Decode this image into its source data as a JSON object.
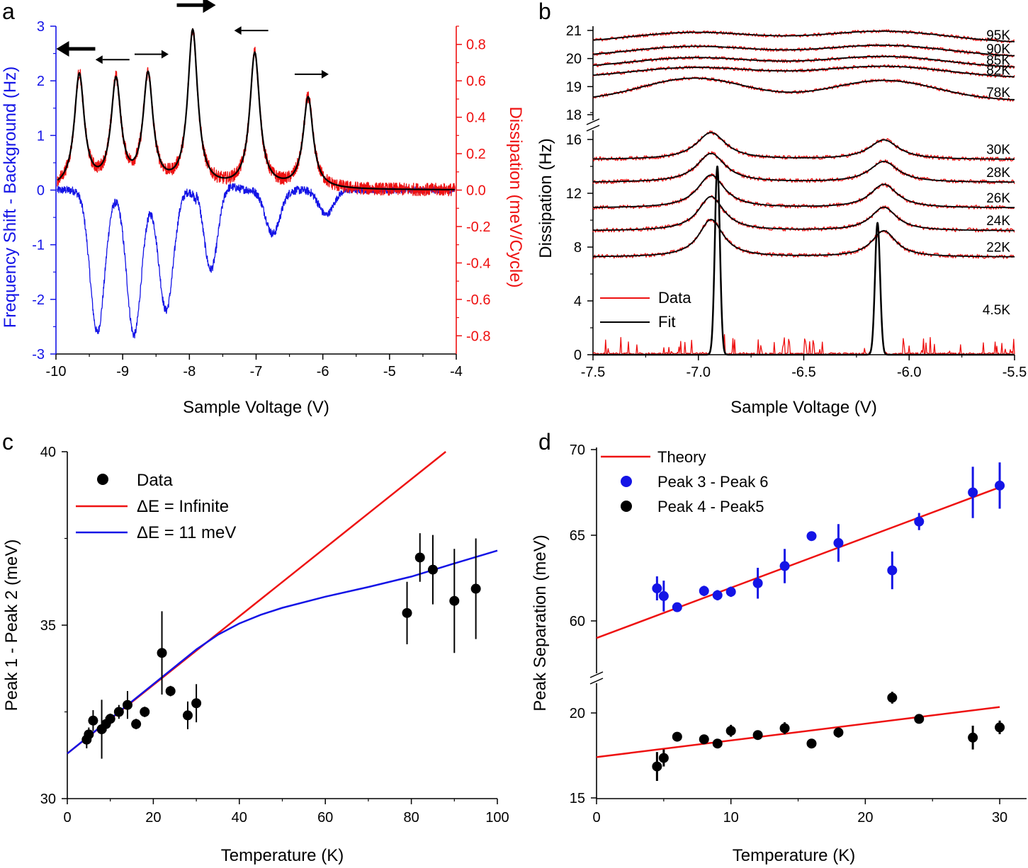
{
  "panel_labels": [
    "a",
    "b",
    "c",
    "d"
  ],
  "colors": {
    "blue": "#1414e6",
    "red": "#ee1111",
    "black": "#000000"
  },
  "chart_data": [
    {
      "type": "line",
      "panel": "a",
      "xlabel": "Sample Voltage (V)",
      "ylabel_left": "Frequency Shift - Background (Hz)",
      "ylabel_right": "Dissipation (meV/Cycle)",
      "xlim": [
        -10,
        -4
      ],
      "ylim_left": [
        -3,
        3
      ],
      "ylim_right": [
        -0.9,
        0.9
      ],
      "xticks": [
        "-10",
        "-9",
        "-8",
        "-7",
        "-6",
        "-5",
        "-4"
      ],
      "yticks_left": [
        "-3",
        "-2",
        "-1",
        "0",
        "1",
        "2",
        "3"
      ],
      "yticks_right": [
        "-0.8",
        "-0.6",
        "-0.4",
        "-0.2",
        "0.0",
        "0.2",
        "0.4",
        "0.6",
        "0.8"
      ],
      "peaks": [
        {
          "x": -9.65,
          "dissipation": 0.62,
          "freq_dip": -2.6,
          "arrow": "left",
          "bold": true
        },
        {
          "x": -9.1,
          "dissipation": 0.58,
          "freq_dip": -2.65,
          "arrow": "left",
          "bold": false
        },
        {
          "x": -8.62,
          "dissipation": 0.61,
          "freq_dip": -2.2,
          "arrow": "right",
          "bold": false
        },
        {
          "x": -7.95,
          "dissipation": 0.86,
          "freq_dip": -1.8,
          "arrow": "right",
          "bold": true
        },
        {
          "x": -7.02,
          "dissipation": 0.74,
          "freq_dip": -0.8,
          "arrow": "left",
          "bold": false
        },
        {
          "x": -6.22,
          "dissipation": 0.5,
          "freq_dip": -0.45,
          "arrow": "right",
          "bold": false
        }
      ],
      "series": [
        {
          "name": "Frequency shift",
          "color": "#1414e6",
          "axis": "left"
        },
        {
          "name": "Dissipation",
          "color": "#ee1111",
          "axis": "right"
        },
        {
          "name": "Fit",
          "color": "#000000",
          "axis": "right"
        }
      ]
    },
    {
      "type": "line",
      "panel": "b",
      "xlabel": "Sample Voltage (V)",
      "ylabel": "Dissipation (Hz)",
      "xlim": [
        -7.5,
        -5.5
      ],
      "xticks": [
        "-7.5",
        "-7.0",
        "-6.5",
        "-6.0",
        "-5.5"
      ],
      "yticks_upper": [
        "18",
        "19",
        "20",
        "21"
      ],
      "yticks_lower": [
        "0",
        "4",
        "8",
        "12",
        "16"
      ],
      "ylim_upper": [
        18,
        21
      ],
      "ylim_lower": [
        0,
        16.5
      ],
      "legend": [
        "Data",
        "Fit"
      ],
      "traces": [
        {
          "label": "95K",
          "offset": 20.55,
          "peak_x": [
            -7.02,
            -6.12
          ],
          "heights": [
            0.38,
            0.42
          ],
          "width": 0.3,
          "segment": "upper"
        },
        {
          "label": "90K",
          "offset": 20.05,
          "peak_x": [
            -7.02,
            -6.12
          ],
          "heights": [
            0.38,
            0.42
          ],
          "width": 0.3,
          "segment": "upper"
        },
        {
          "label": "85K",
          "offset": 19.65,
          "peak_x": [
            -7.02,
            -6.12
          ],
          "heights": [
            0.38,
            0.42
          ],
          "width": 0.3,
          "segment": "upper"
        },
        {
          "label": "82K",
          "offset": 19.3,
          "peak_x": [
            -7.02,
            -6.12
          ],
          "heights": [
            0.38,
            0.42
          ],
          "width": 0.3,
          "segment": "upper"
        },
        {
          "label": "78K",
          "offset": 18.5,
          "peak_x": [
            -7.02,
            -6.12
          ],
          "heights": [
            0.8,
            0.72
          ],
          "width": 0.25,
          "segment": "upper"
        },
        {
          "label": "30K",
          "offset": 14.5,
          "peak_x": [
            -6.94,
            -6.12
          ],
          "heights": [
            2.0,
            1.45
          ],
          "width": 0.085,
          "segment": "lower"
        },
        {
          "label": "28K",
          "offset": 12.8,
          "peak_x": [
            -6.94,
            -6.12
          ],
          "heights": [
            2.15,
            1.55
          ],
          "width": 0.082,
          "segment": "lower"
        },
        {
          "label": "26K",
          "offset": 10.9,
          "peak_x": [
            -6.94,
            -6.12
          ],
          "heights": [
            2.45,
            1.75
          ],
          "width": 0.078,
          "segment": "lower"
        },
        {
          "label": "24K",
          "offset": 9.2,
          "peak_x": [
            -6.94,
            -6.12
          ],
          "heights": [
            2.55,
            1.75
          ],
          "width": 0.074,
          "segment": "lower"
        },
        {
          "label": "22K",
          "offset": 7.25,
          "peak_x": [
            -6.94,
            -6.12
          ],
          "heights": [
            2.8,
            1.95
          ],
          "width": 0.07,
          "segment": "lower"
        },
        {
          "label": "4.5K",
          "offset": 0.0,
          "peak_x": [
            -6.91,
            -6.15
          ],
          "heights": [
            14.0,
            9.8
          ],
          "width": 0.012,
          "segment": "lower"
        }
      ]
    },
    {
      "type": "scatter",
      "panel": "c",
      "xlabel": "Temperature (K)",
      "ylabel": "Peak 1 - Peak 2 (meV)",
      "xlim": [
        0,
        100
      ],
      "ylim": [
        30,
        40
      ],
      "xticks": [
        "0",
        "20",
        "40",
        "60",
        "80",
        "100"
      ],
      "yticks": [
        "30",
        "35",
        "40"
      ],
      "legend": [
        "Data",
        "ΔE = Infinite",
        "ΔE = 11 meV"
      ],
      "points": [
        {
          "x": 4.5,
          "y": 31.7,
          "err": 0.25
        },
        {
          "x": 5,
          "y": 31.85,
          "err": 0.2
        },
        {
          "x": 6,
          "y": 32.25,
          "err": 0.3
        },
        {
          "x": 8,
          "y": 32.0,
          "err": 0.85
        },
        {
          "x": 9,
          "y": 32.15,
          "err": 0.2
        },
        {
          "x": 10,
          "y": 32.3,
          "err": 0.15
        },
        {
          "x": 12,
          "y": 32.5,
          "err": 0.2
        },
        {
          "x": 14,
          "y": 32.7,
          "err": 0.4
        },
        {
          "x": 16,
          "y": 32.15,
          "err": 0.15
        },
        {
          "x": 18,
          "y": 32.5,
          "err": 0.15
        },
        {
          "x": 22,
          "y": 34.2,
          "err": 1.2
        },
        {
          "x": 24,
          "y": 33.1,
          "err": 0.15
        },
        {
          "x": 28,
          "y": 32.4,
          "err": 0.4
        },
        {
          "x": 30,
          "y": 32.75,
          "err": 0.55
        },
        {
          "x": 79,
          "y": 35.35,
          "err": 0.9
        },
        {
          "x": 82,
          "y": 36.95,
          "err": 0.7
        },
        {
          "x": 85,
          "y": 36.6,
          "err": 1.0
        },
        {
          "x": 90,
          "y": 35.7,
          "err": 1.5
        },
        {
          "x": 95,
          "y": 36.05,
          "err": 1.45
        }
      ],
      "theory_infinite": {
        "x": [
          0,
          88
        ],
        "y": [
          31.3,
          40.0
        ]
      },
      "theory_11meV": {
        "x": [
          0,
          10,
          20,
          25,
          30,
          35,
          40,
          45,
          50,
          60,
          70,
          80,
          90,
          100
        ],
        "y": [
          31.3,
          32.3,
          33.3,
          33.8,
          34.3,
          34.72,
          35.05,
          35.3,
          35.5,
          35.82,
          36.1,
          36.4,
          36.78,
          37.15
        ]
      }
    },
    {
      "type": "scatter",
      "panel": "d",
      "xlabel": "Temperature (K)",
      "ylabel": "Peak Separation (meV)",
      "xlim": [
        0,
        32
      ],
      "xticks": [
        "0",
        "10",
        "20",
        "30"
      ],
      "yticks_upper": [
        "60",
        "65",
        "70"
      ],
      "yticks_lower": [
        "15",
        "20"
      ],
      "ylim_upper": [
        58,
        70
      ],
      "ylim_lower": [
        15,
        22
      ],
      "legend": [
        "Theory",
        "Peak 3 - Peak 6",
        "Peak 4 - Peak5"
      ],
      "series": [
        {
          "name": "Peak 3 - Peak 6",
          "color": "#1414e6",
          "points": [
            {
              "x": 4.5,
              "y": 61.9,
              "err": 0.7
            },
            {
              "x": 5,
              "y": 61.45,
              "err": 0.9
            },
            {
              "x": 6,
              "y": 60.8,
              "err": 0.25
            },
            {
              "x": 8,
              "y": 61.75,
              "err": 0.3
            },
            {
              "x": 9,
              "y": 61.5,
              "err": 0.3
            },
            {
              "x": 10,
              "y": 61.7,
              "err": 0.3
            },
            {
              "x": 12,
              "y": 62.2,
              "err": 0.9
            },
            {
              "x": 14,
              "y": 63.2,
              "err": 1.0
            },
            {
              "x": 16,
              "y": 64.95,
              "err": 0.25
            },
            {
              "x": 18,
              "y": 64.55,
              "err": 1.1
            },
            {
              "x": 22,
              "y": 62.95,
              "err": 1.1
            },
            {
              "x": 24,
              "y": 65.8,
              "err": 0.5
            },
            {
              "x": 28,
              "y": 67.5,
              "err": 1.5
            },
            {
              "x": 30,
              "y": 67.9,
              "err": 1.35
            }
          ],
          "theory": {
            "x": [
              0,
              30
            ],
            "y": [
              59.0,
              67.8
            ]
          }
        },
        {
          "name": "Peak 4 - Peak5",
          "color": "#000000",
          "points": [
            {
              "x": 4.5,
              "y": 16.85,
              "err": 0.85
            },
            {
              "x": 5,
              "y": 17.35,
              "err": 0.5
            },
            {
              "x": 6,
              "y": 18.6,
              "err": 0.25
            },
            {
              "x": 8,
              "y": 18.45,
              "err": 0.25
            },
            {
              "x": 9,
              "y": 18.2,
              "err": 0.25
            },
            {
              "x": 10,
              "y": 18.95,
              "err": 0.35
            },
            {
              "x": 12,
              "y": 18.7,
              "err": 0.25
            },
            {
              "x": 14,
              "y": 19.1,
              "err": 0.35
            },
            {
              "x": 16,
              "y": 18.2,
              "err": 0.25
            },
            {
              "x": 18,
              "y": 18.85,
              "err": 0.3
            },
            {
              "x": 22,
              "y": 20.9,
              "err": 0.35
            },
            {
              "x": 24,
              "y": 19.65,
              "err": 0.25
            },
            {
              "x": 28,
              "y": 18.55,
              "err": 0.7
            },
            {
              "x": 30,
              "y": 19.15,
              "err": 0.4
            }
          ],
          "theory": {
            "x": [
              0,
              30
            ],
            "y": [
              17.4,
              20.35
            ]
          }
        }
      ]
    }
  ]
}
